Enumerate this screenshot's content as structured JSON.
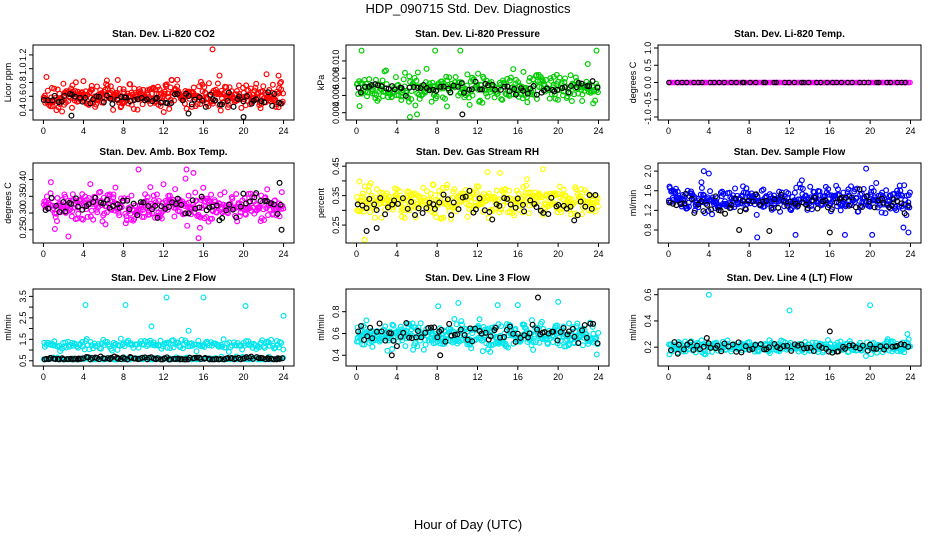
{
  "figure": {
    "title": "HDP_090715  Std. Dev. Diagnostics",
    "xlabel": "Hour of Day (UTC)"
  },
  "colors": {
    "overlay": "#000000",
    "red": "#ff0000",
    "green": "#00cc00",
    "magenta": "#ff00ff",
    "yellow": "#ffff00",
    "blue": "#0000ff",
    "cyan": "#00e5ee"
  },
  "chart_data": [
    {
      "type": "scatter",
      "title": "Stan. Dev. Li-820 CO2",
      "ylabel": "Licor ppm",
      "xlim": [
        0,
        24
      ],
      "xticks": [
        0,
        4,
        8,
        12,
        16,
        20,
        24
      ],
      "ylim": [
        0.3,
        1.3
      ],
      "yticks": [
        0.4,
        0.6,
        0.8,
        1.0,
        1.2
      ],
      "yticklabels": [
        "0.4",
        "0.6",
        "0.8",
        "1.0",
        "1.2"
      ],
      "series": [
        {
          "color": "red",
          "center": 0.6,
          "spread": 0.16,
          "count": 400,
          "outliers": [
            [
              0.3,
              0.88
            ],
            [
              4.0,
              0.82
            ],
            [
              16.9,
              1.28
            ],
            [
              17.6,
              0.9
            ],
            [
              22.3,
              0.92
            ],
            [
              23.5,
              0.9
            ]
          ]
        },
        {
          "color": "overlay",
          "center": 0.56,
          "spread": 0.11,
          "count": 70,
          "outliers": [
            [
              2.8,
              0.32
            ],
            [
              14.5,
              0.35
            ],
            [
              20.0,
              0.3
            ]
          ]
        }
      ]
    },
    {
      "type": "scatter",
      "title": "Stan. Dev. Li-820 Pressure",
      "ylabel": "kPa",
      "xlim": [
        0,
        24
      ],
      "xticks": [
        0,
        4,
        8,
        12,
        16,
        20,
        24
      ],
      "ylim": [
        0.0035,
        0.0115
      ],
      "yticks": [
        0.004,
        0.006,
        0.008,
        0.01
      ],
      "yticklabels": [
        "0.004",
        "0.006",
        "0.008",
        "0.010"
      ],
      "series": [
        {
          "color": "green",
          "center": 0.0068,
          "spread": 0.0014,
          "count": 330,
          "outliers": [
            [
              0.5,
              0.0112
            ],
            [
              7.8,
              0.0112
            ],
            [
              10.3,
              0.0112
            ],
            [
              23.8,
              0.0112
            ],
            [
              5.3,
              0.0035
            ],
            [
              6.0,
              0.0038
            ]
          ]
        },
        {
          "color": "overlay",
          "center": 0.0068,
          "spread": 0.0006,
          "count": 70,
          "outliers": [
            [
              10.5,
              0.0038
            ]
          ]
        }
      ]
    },
    {
      "type": "scatter",
      "title": "Stan. Dev. Li-820 Temp.",
      "ylabel": "degrees C",
      "xlim": [
        0,
        24
      ],
      "xticks": [
        0,
        4,
        8,
        12,
        16,
        20,
        24
      ],
      "ylim": [
        -1.0,
        1.0
      ],
      "yticks": [
        -1.0,
        -0.5,
        0.0,
        0.5,
        1.0
      ],
      "yticklabels": [
        "-1.0",
        "-0.5",
        "0.0",
        "0.5",
        "1.0"
      ],
      "series": [
        {
          "color": "magenta",
          "center": 0.0,
          "spread": 0.0,
          "count": 190,
          "outliers": []
        },
        {
          "color": "overlay",
          "center": 0.0,
          "spread": 0.0,
          "count": 45,
          "outliers": []
        }
      ]
    },
    {
      "type": "scatter",
      "title": "Stan. Dev. Amb. Box Temp.",
      "ylabel": "degrees C",
      "xlim": [
        0,
        24
      ],
      "xticks": [
        0,
        4,
        8,
        12,
        16,
        20,
        24
      ],
      "ylim": [
        0.22,
        0.44
      ],
      "yticks": [
        0.25,
        0.3,
        0.35,
        0.4
      ],
      "yticklabels": [
        "0.25",
        "0.30",
        "0.35",
        "0.40"
      ],
      "series": [
        {
          "color": "magenta",
          "center": 0.32,
          "spread": 0.045,
          "count": 360,
          "outliers": [
            [
              9.5,
              0.43
            ],
            [
              14.3,
              0.43
            ],
            [
              15.0,
              0.42
            ],
            [
              2.5,
              0.23
            ],
            [
              15.5,
              0.225
            ]
          ]
        },
        {
          "color": "overlay",
          "center": 0.32,
          "spread": 0.035,
          "count": 70,
          "outliers": [
            [
              23.6,
              0.39
            ],
            [
              23.8,
              0.25
            ]
          ]
        }
      ]
    },
    {
      "type": "scatter",
      "title": "Stan. Dev. Gas Stream RH",
      "ylabel": "percent",
      "xlim": [
        0,
        24
      ],
      "xticks": [
        0,
        4,
        8,
        12,
        16,
        20,
        24
      ],
      "ylim": [
        0.2,
        0.45
      ],
      "yticks": [
        0.25,
        0.3,
        0.35,
        0.4,
        0.45
      ],
      "yticklabels": [
        "0.25",
        "0.35",
        "0.45"
      ],
      "series": [
        {
          "color": "yellow",
          "center": 0.33,
          "spread": 0.045,
          "count": 360,
          "outliers": [
            [
              0.8,
              0.2
            ],
            [
              18.5,
              0.44
            ],
            [
              13.0,
              0.43
            ]
          ]
        },
        {
          "color": "overlay",
          "center": 0.32,
          "spread": 0.04,
          "count": 65,
          "outliers": [
            [
              2.0,
              0.24
            ],
            [
              1.0,
              0.23
            ]
          ]
        }
      ]
    },
    {
      "type": "scatter",
      "title": "Stan. Dev. Sample Flow",
      "ylabel": "ml/min",
      "xlim": [
        0,
        24
      ],
      "xticks": [
        0,
        4,
        8,
        12,
        16,
        20,
        24
      ],
      "ylim": [
        0.6,
        2.1
      ],
      "yticks": [
        0.8,
        1.2,
        1.6,
        2.0
      ],
      "yticklabels": [
        "0.8",
        "1.2",
        "1.6",
        "2.0"
      ],
      "series": [
        {
          "color": "blue",
          "center": 1.42,
          "spread": 0.22,
          "count": 380,
          "outliers": [
            [
              3.5,
              2.0
            ],
            [
              4.0,
              1.95
            ],
            [
              19.6,
              2.05
            ],
            [
              8.8,
              0.65
            ],
            [
              12.6,
              0.7
            ],
            [
              20.2,
              0.7
            ],
            [
              23.8,
              0.75
            ],
            [
              23.3,
              0.85
            ],
            [
              17.5,
              0.7
            ]
          ]
        },
        {
          "color": "overlay",
          "center": 1.35,
          "spread": 0.2,
          "count": 70,
          "outliers": [
            [
              7.0,
              0.8
            ],
            [
              10.0,
              0.78
            ],
            [
              16.0,
              0.75
            ]
          ]
        }
      ]
    },
    {
      "type": "scatter",
      "title": "Stan. Dev. Line 2 Flow",
      "ylabel": "ml/min",
      "xlim": [
        0,
        24
      ],
      "xticks": [
        0,
        4,
        8,
        12,
        16,
        20,
        24
      ],
      "ylim": [
        0.4,
        3.7
      ],
      "yticks": [
        0.5,
        1.0,
        1.5,
        2.0,
        2.5,
        3.0,
        3.5
      ],
      "yticklabels": [
        "0.5",
        "1.5",
        "2.5",
        "3.5"
      ],
      "series": [
        {
          "color": "cyan",
          "center": 1.25,
          "spread": 0.22,
          "count": 190,
          "outliers": [
            [
              4.2,
              3.1
            ],
            [
              8.2,
              3.1
            ],
            [
              12.3,
              3.45
            ],
            [
              16.0,
              3.45
            ],
            [
              20.2,
              3.05
            ],
            [
              24.0,
              2.6
            ],
            [
              10.8,
              2.1
            ],
            [
              14.5,
              1.9
            ]
          ]
        },
        {
          "color": "cyan",
          "center": 0.58,
          "spread": 0.08,
          "count": 140,
          "outliers": []
        },
        {
          "color": "overlay",
          "center": 0.6,
          "spread": 0.08,
          "count": 110,
          "outliers": []
        }
      ]
    },
    {
      "type": "scatter",
      "title": "Stan. Dev. Line 3 Flow",
      "ylabel": "ml/min",
      "xlim": [
        0,
        24
      ],
      "xticks": [
        0,
        4,
        8,
        12,
        16,
        20,
        24
      ],
      "ylim": [
        0.33,
        0.98
      ],
      "yticks": [
        0.4,
        0.6,
        0.8
      ],
      "yticklabels": [
        "0.4",
        "0.6",
        "0.8"
      ],
      "series": [
        {
          "color": "cyan",
          "center": 0.58,
          "spread": 0.1,
          "count": 400,
          "outliers": [
            [
              8.1,
              0.85
            ],
            [
              10.1,
              0.88
            ],
            [
              14.0,
              0.86
            ],
            [
              16.0,
              0.86
            ],
            [
              20.0,
              0.89
            ]
          ]
        },
        {
          "color": "overlay",
          "center": 0.6,
          "spread": 0.09,
          "count": 80,
          "outliers": [
            [
              18.0,
              0.93
            ],
            [
              3.5,
              0.4
            ],
            [
              8.3,
              0.4
            ]
          ]
        }
      ]
    },
    {
      "type": "scatter",
      "title": "Stan. Dev. Line 4 (LT) Flow",
      "ylabel": "ml/min",
      "xlim": [
        0,
        24
      ],
      "xticks": [
        0,
        4,
        8,
        12,
        16,
        20,
        24
      ],
      "ylim": [
        0.08,
        0.62
      ],
      "yticks": [
        0.2,
        0.4,
        0.6
      ],
      "yticklabels": [
        "0.2",
        "0.4",
        "0.6"
      ],
      "series": [
        {
          "color": "cyan",
          "center": 0.2,
          "spread": 0.04,
          "count": 330,
          "outliers": [
            [
              4.0,
              0.6
            ],
            [
              12.0,
              0.48
            ],
            [
              20.0,
              0.52
            ],
            [
              23.7,
              0.3
            ]
          ]
        },
        {
          "color": "overlay",
          "center": 0.2,
          "spread": 0.04,
          "count": 70,
          "outliers": [
            [
              16.0,
              0.32
            ],
            [
              3.8,
              0.27
            ]
          ]
        }
      ]
    }
  ]
}
